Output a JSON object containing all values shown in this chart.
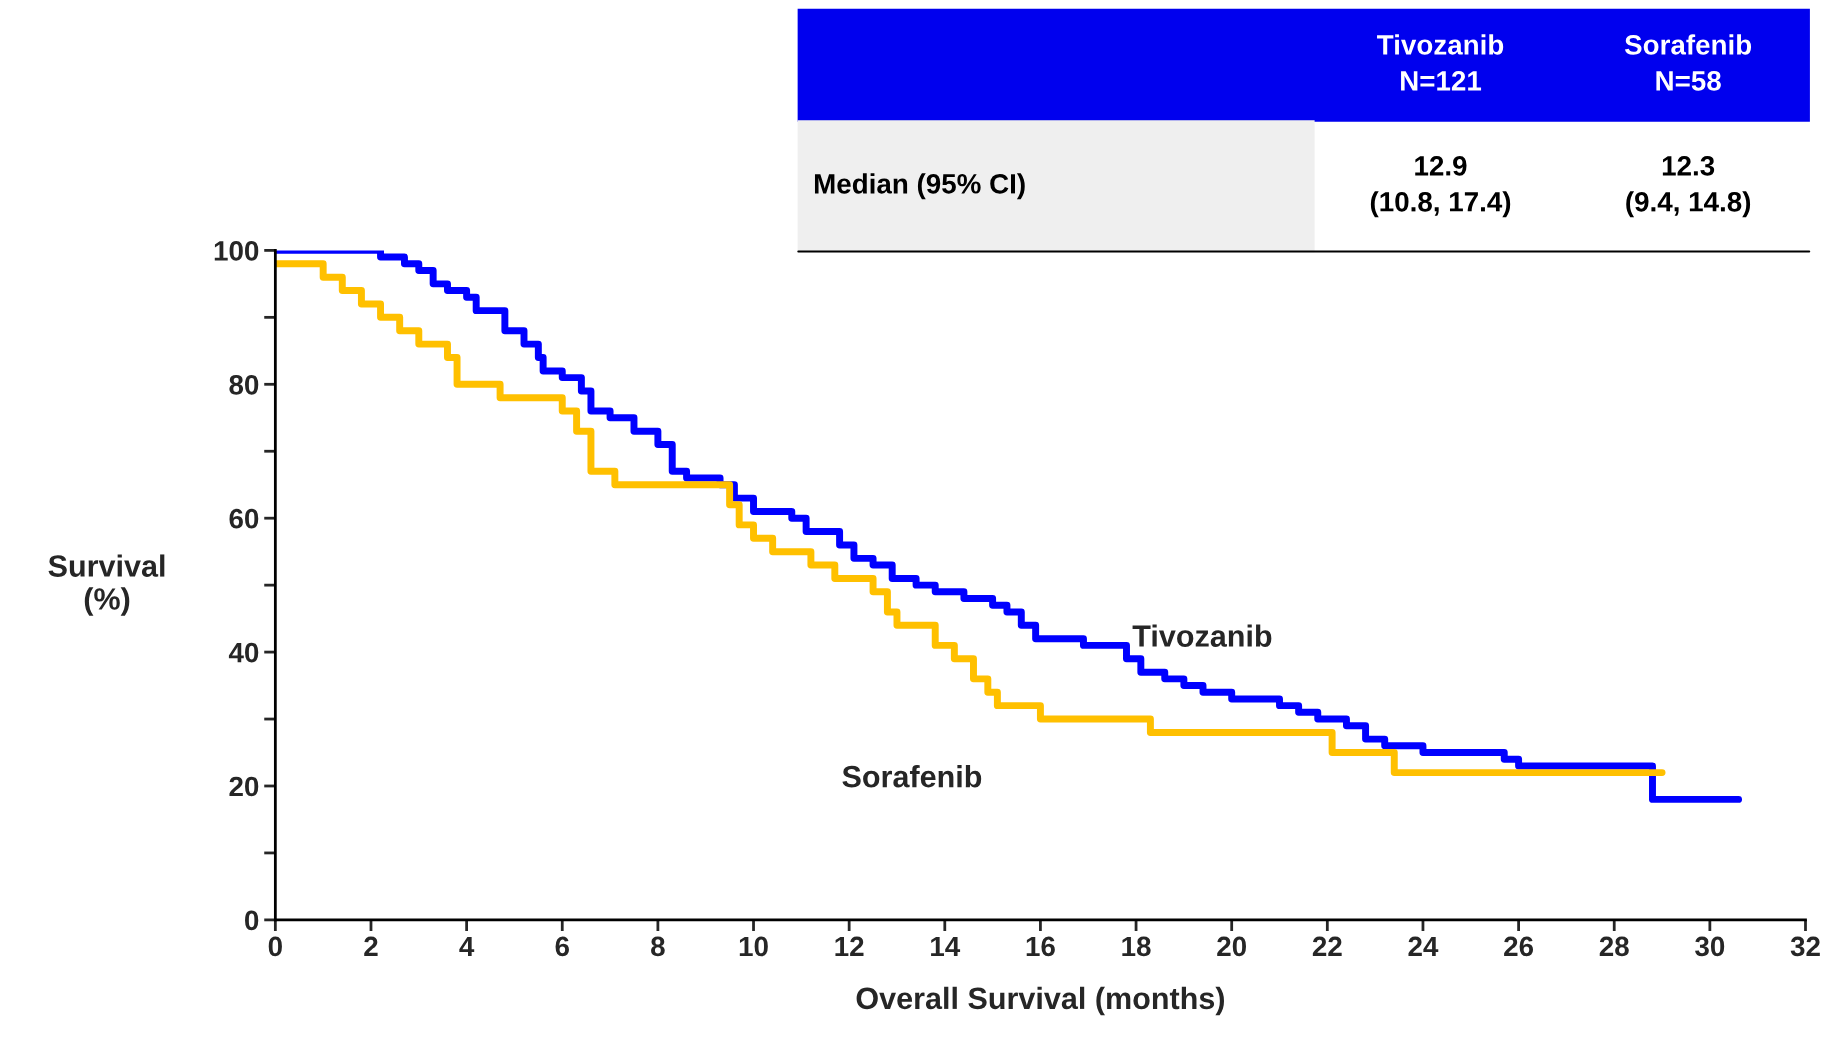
{
  "chart_data": {
    "type": "step",
    "xlabel": "Overall Survival (months)",
    "ylabel": "Survival\n(%)",
    "xlim": [
      0,
      32
    ],
    "xticks": [
      0,
      2,
      4,
      6,
      8,
      10,
      12,
      14,
      16,
      18,
      20,
      22,
      24,
      26,
      28,
      30,
      32
    ],
    "ylim": [
      0,
      100
    ],
    "yticks": [
      0,
      {
        "value": 10,
        "label": null
      },
      20,
      {
        "value": 30,
        "label": null
      },
      40,
      {
        "value": 50,
        "label": null
      },
      60,
      {
        "value": 70,
        "label": null
      },
      80,
      {
        "value": 90,
        "label": null
      },
      100
    ],
    "grid": false,
    "legend": false,
    "series": [
      {
        "name": "Tivozanib",
        "color": "#0000ff",
        "x": [
          0,
          2.2,
          2.7,
          3.0,
          3.3,
          3.6,
          4.0,
          4.2,
          4.8,
          5.2,
          5.5,
          5.6,
          6.0,
          6.4,
          6.6,
          7.0,
          7.5,
          8.0,
          8.3,
          8.6,
          9.3,
          9.6,
          10.0,
          10.8,
          11.1,
          11.8,
          12.1,
          12.5,
          12.9,
          13.4,
          13.8,
          14.4,
          15.0,
          15.3,
          15.6,
          15.9,
          16.9,
          17.8,
          18.1,
          18.6,
          19.0,
          19.4,
          20.0,
          21.0,
          21.4,
          21.8,
          22.4,
          22.8,
          23.2,
          24.0,
          25.7,
          26.0,
          28.8,
          30.6
        ],
        "values": [
          100,
          99,
          98,
          97,
          95,
          94,
          93,
          91,
          88,
          86,
          84,
          82,
          81,
          79,
          76,
          75,
          73,
          71,
          67,
          66,
          65,
          63,
          61,
          60,
          58,
          56,
          54,
          53,
          51,
          50,
          49,
          48,
          47,
          46,
          44,
          42,
          41,
          39,
          37,
          36,
          35,
          34,
          33,
          32,
          31,
          30,
          29,
          27,
          26,
          25,
          24,
          23,
          18,
          18
        ]
      },
      {
        "name": "Sorafenib",
        "color": "#ffc000",
        "x": [
          0,
          1.0,
          1.4,
          1.8,
          2.2,
          2.6,
          3.0,
          3.6,
          3.8,
          4.7,
          6.0,
          6.3,
          6.6,
          7.1,
          9.5,
          9.7,
          10.0,
          10.4,
          11.2,
          11.7,
          12.5,
          12.8,
          13.0,
          13.8,
          14.2,
          14.6,
          14.9,
          15.1,
          16.0,
          18.3,
          22.1,
          23.4,
          29.0
        ],
        "values": [
          98,
          96,
          94,
          92,
          90,
          88,
          86,
          84,
          80,
          78,
          76,
          73,
          67,
          65,
          62,
          59,
          57,
          55,
          53,
          51,
          49,
          46,
          44,
          41,
          39,
          36,
          34,
          32,
          30,
          28,
          25,
          22,
          22
        ]
      }
    ],
    "annotations": [
      "Tivozanib\nN=121",
      "Sorafenib\nN=58",
      "Median (95% CI)",
      "12.9\n(10.8, 17.4)",
      "12.3\n(9.4, 14.8)"
    ]
  }
}
